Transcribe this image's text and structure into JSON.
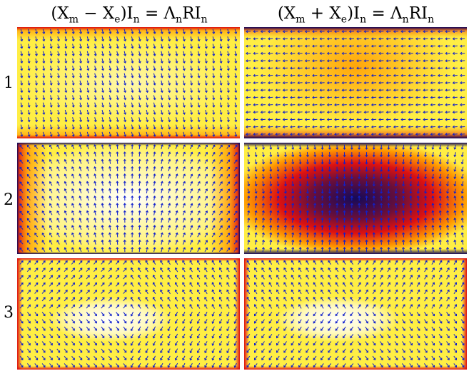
{
  "columns": [
    {
      "title_parts": [
        "(X",
        "m",
        " − X",
        "e",
        ")I",
        "n",
        " = Λ",
        "n",
        "RI",
        "n"
      ]
    },
    {
      "title_parts": [
        "(X",
        "m",
        " + X",
        "e",
        ")I",
        "n",
        " = Λ",
        "n",
        "RI",
        "n"
      ]
    }
  ],
  "rows": [
    {
      "label": "1"
    },
    {
      "label": "2"
    },
    {
      "label": "3"
    }
  ],
  "colors": {
    "white": "#ffffff",
    "yellow": "#ffee44",
    "orange": "#ff9900",
    "red": "#dd1111",
    "dark_blue": "#150a5a",
    "arrow": "#1020cc"
  }
}
